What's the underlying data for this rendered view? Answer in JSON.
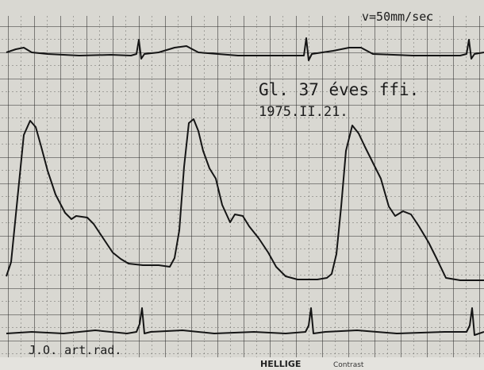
{
  "speed_label": "v=50mm/sec",
  "patient_label": "Gl. 37 éves ffi.",
  "date_label": "1975.II.21.",
  "lead_label": "J.O. art.rad.",
  "footer": {
    "brand": "HELLIGE",
    "product": "Contrast"
  }
}
